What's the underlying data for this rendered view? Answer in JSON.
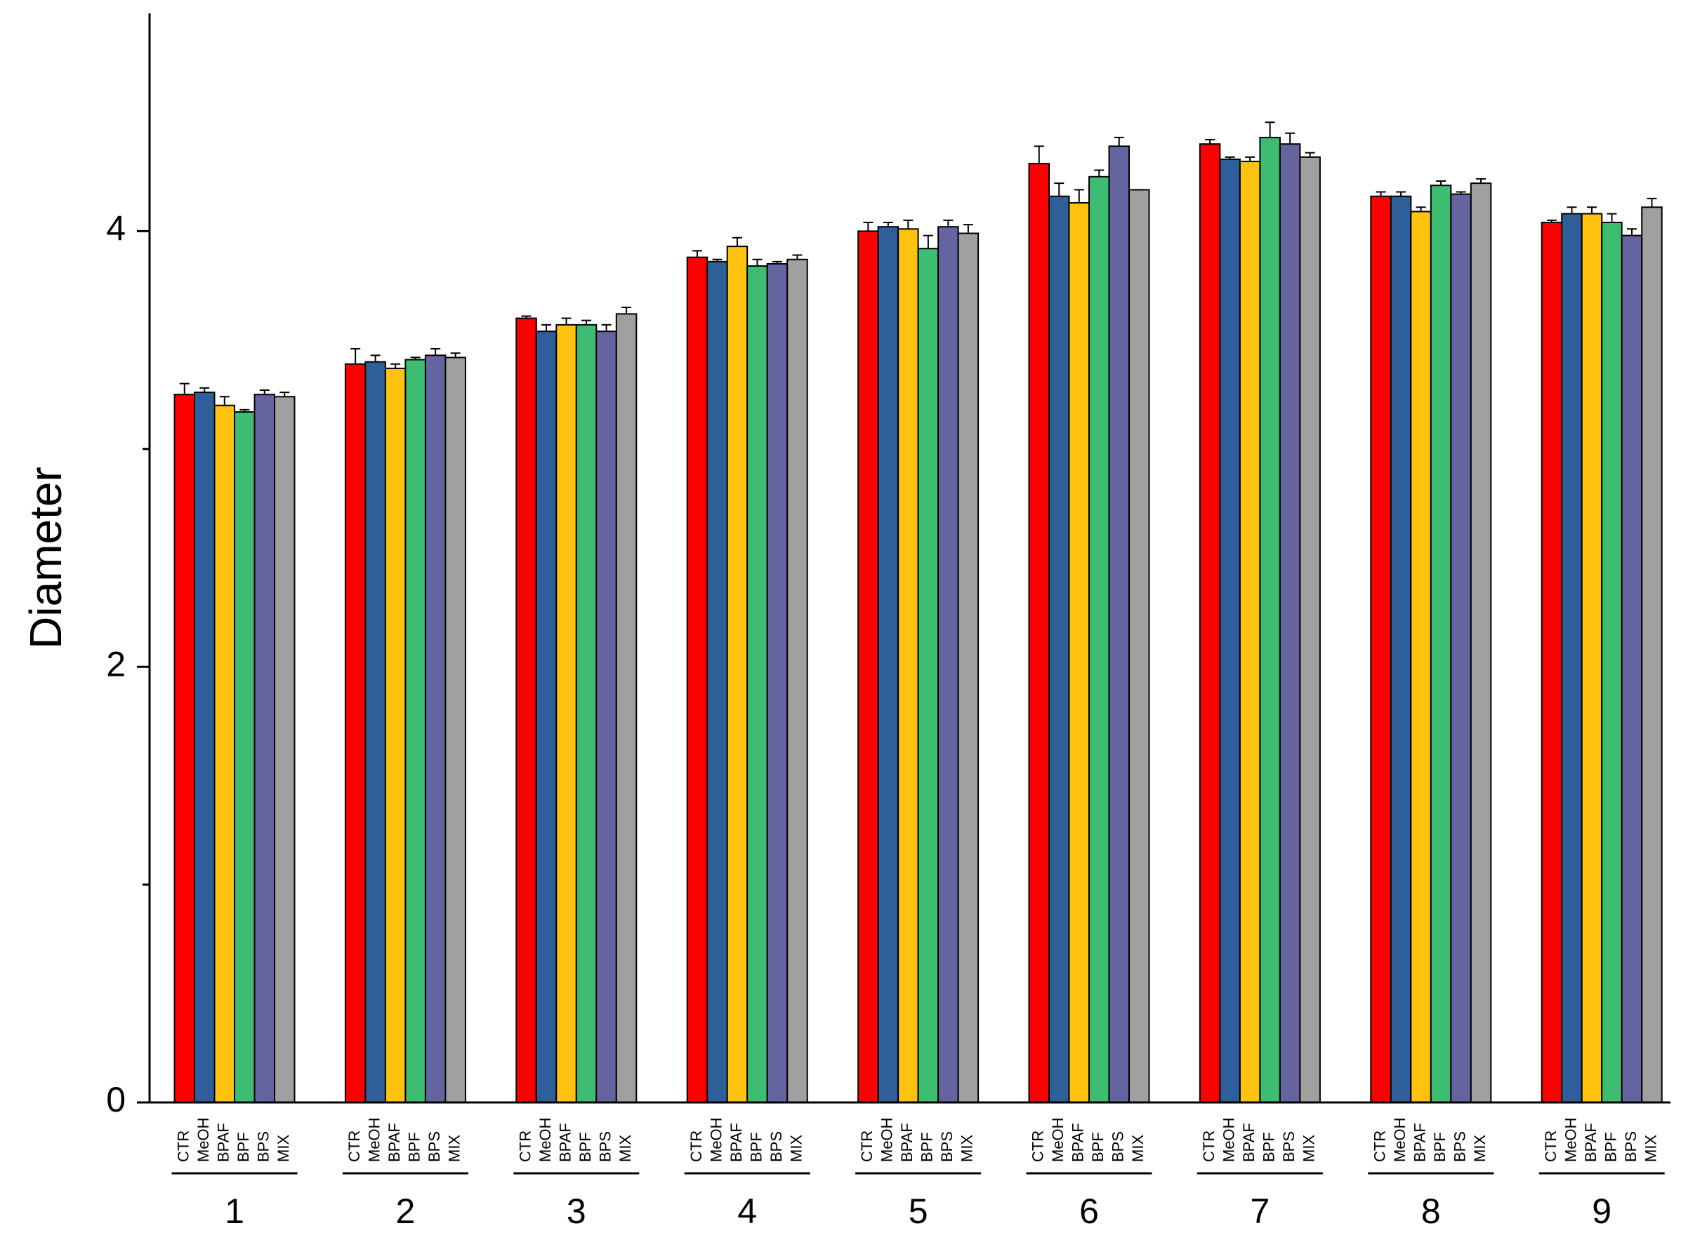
{
  "chart_data": {
    "type": "bar",
    "y_label": "Diameter",
    "categories": [
      "1",
      "2",
      "3",
      "4",
      "5",
      "6",
      "7",
      "8",
      "9"
    ],
    "series": [
      {
        "name": "CTR",
        "color": "#ff0000",
        "values": [
          3.25,
          3.39,
          3.6,
          3.88,
          4.0,
          4.31,
          4.4,
          4.16,
          4.04
        ],
        "errors": [
          0.05,
          0.07,
          0.01,
          0.03,
          0.04,
          0.08,
          0.02,
          0.02,
          0.01
        ]
      },
      {
        "name": "MeOH",
        "color": "#2f5f9a",
        "values": [
          3.26,
          3.4,
          3.54,
          3.86,
          4.02,
          4.16,
          4.33,
          4.16,
          4.08
        ],
        "errors": [
          0.02,
          0.03,
          0.03,
          0.01,
          0.02,
          0.06,
          0.01,
          0.02,
          0.03
        ]
      },
      {
        "name": "BPAF",
        "color": "#ffc20e",
        "values": [
          3.2,
          3.37,
          3.57,
          3.93,
          4.01,
          4.13,
          4.32,
          4.09,
          4.08
        ],
        "errors": [
          0.04,
          0.02,
          0.03,
          0.04,
          0.04,
          0.06,
          0.02,
          0.02,
          0.03
        ]
      },
      {
        "name": "BPF",
        "color": "#3dbd72",
        "values": [
          3.17,
          3.41,
          3.57,
          3.84,
          3.92,
          4.25,
          4.43,
          4.21,
          4.04
        ],
        "errors": [
          0.01,
          0.01,
          0.02,
          0.03,
          0.06,
          0.03,
          0.07,
          0.02,
          0.04
        ]
      },
      {
        "name": "BPS",
        "color": "#6465a0",
        "values": [
          3.25,
          3.43,
          3.54,
          3.85,
          4.02,
          4.39,
          4.4,
          4.17,
          3.98
        ],
        "errors": [
          0.02,
          0.03,
          0.03,
          0.01,
          0.03,
          0.04,
          0.05,
          0.01,
          0.03
        ]
      },
      {
        "name": "MIX",
        "color": "#a0a0a0",
        "values": [
          3.24,
          3.42,
          3.62,
          3.87,
          3.99,
          4.19,
          4.34,
          4.22,
          4.11
        ],
        "errors": [
          0.02,
          0.02,
          0.03,
          0.02,
          0.04,
          0.0,
          0.02,
          0.02,
          0.04
        ]
      }
    ],
    "ylim": [
      0,
      5
    ],
    "yticks": [
      0,
      2,
      4
    ],
    "y_minor_ticks": [
      1,
      3
    ],
    "grid": false
  }
}
